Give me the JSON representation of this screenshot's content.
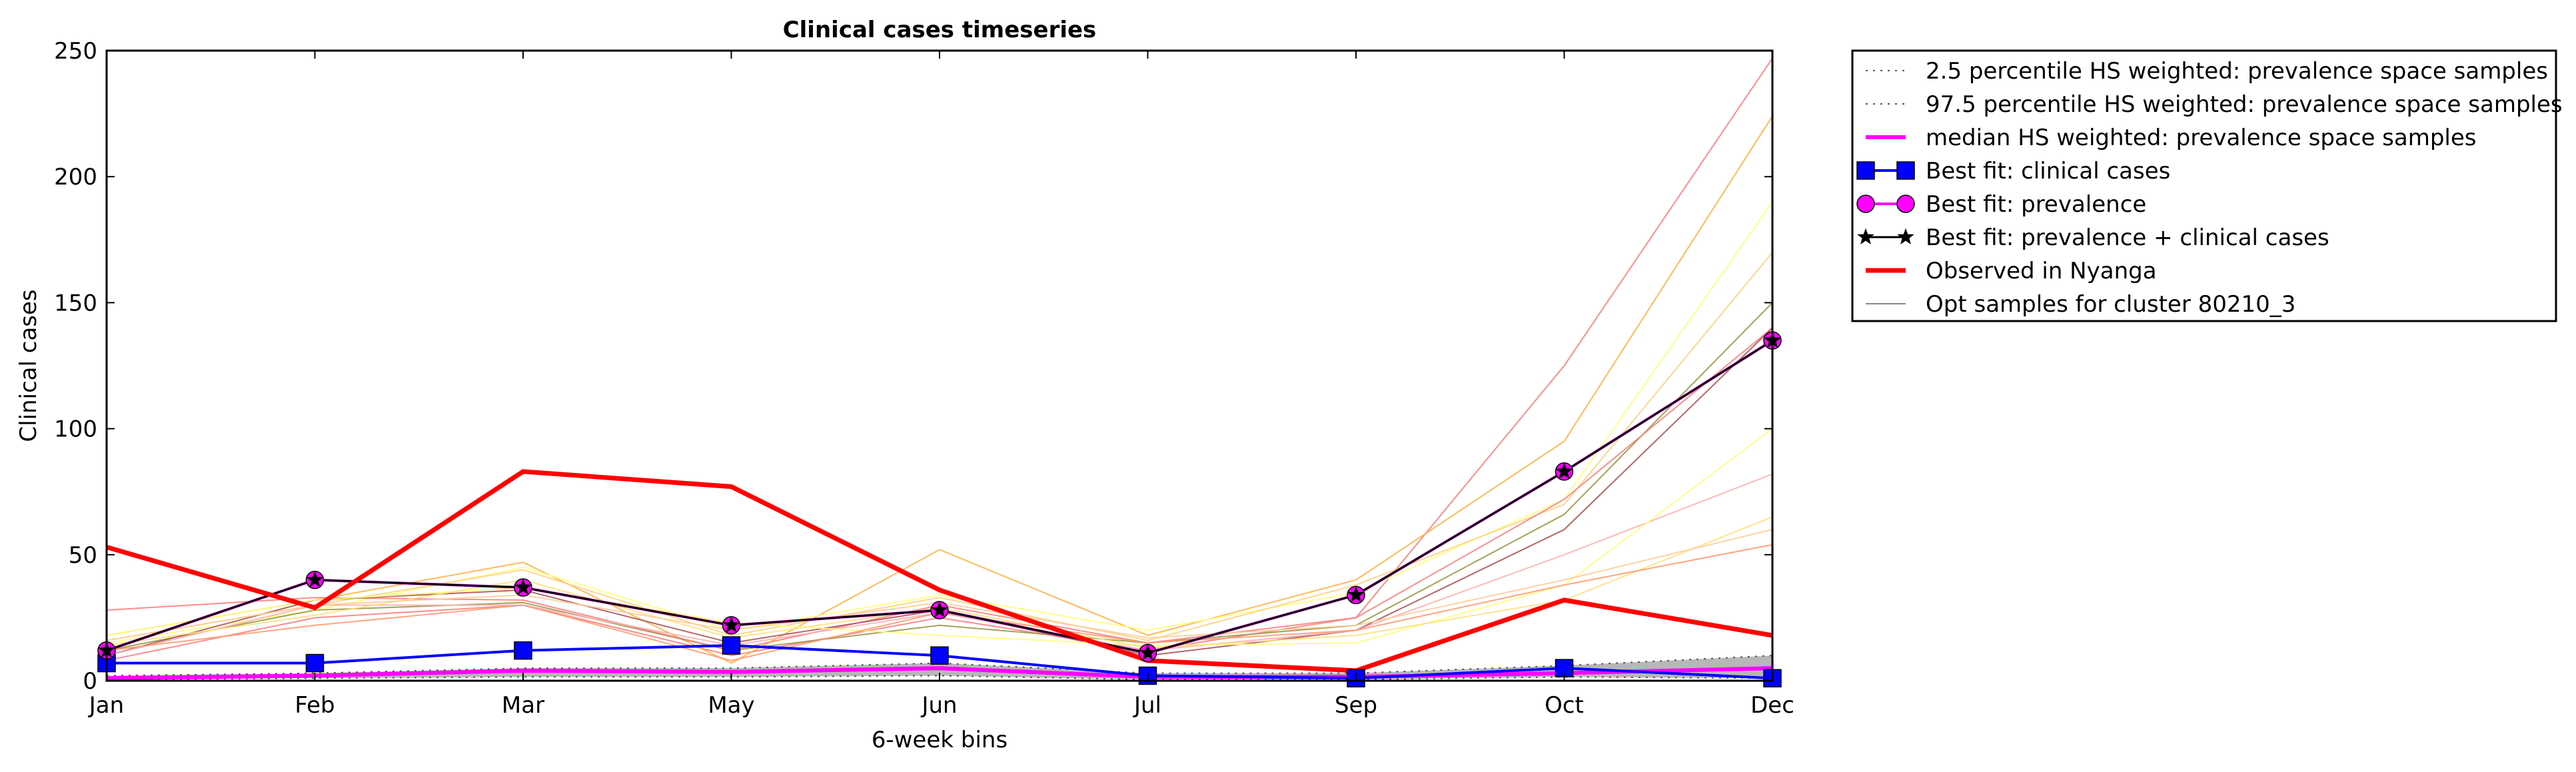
{
  "chart_data": {
    "type": "line",
    "title": "Clinical cases timeseries",
    "xlabel": "6-week bins",
    "ylabel": "Clinical cases",
    "categories": [
      "Jan",
      "Feb",
      "Mar",
      "May",
      "Jun",
      "Jul",
      "Sep",
      "Oct",
      "Dec"
    ],
    "ylim": [
      0,
      250
    ],
    "yticks": [
      "0",
      "50",
      "100",
      "150",
      "200",
      "250"
    ],
    "grid": false,
    "legend_position": "outside-right-top",
    "series": [
      {
        "name": "2.5 percentile HS weighted: prevalence space samples",
        "style": "dotted",
        "color": "#555555",
        "values": [
          0.5,
          1,
          1.5,
          1.5,
          2,
          0.5,
          0.5,
          1.5,
          1
        ]
      },
      {
        "name": "97.5 percentile HS weighted: prevalence space samples",
        "style": "dotted",
        "color": "#555555",
        "values": [
          2,
          3,
          5,
          5,
          7,
          3,
          3,
          6,
          10
        ]
      },
      {
        "name": "median HS weighted: prevalence space samples",
        "style": "solid",
        "color": "#ff00ff",
        "values": [
          1,
          2,
          4,
          3.5,
          5,
          1.5,
          1.5,
          3,
          5
        ]
      },
      {
        "name": "Best fit: clinical cases",
        "style": "solid",
        "marker": "square",
        "color": "#0000ff",
        "values": [
          7,
          7,
          12,
          14,
          10,
          2,
          1,
          5,
          1
        ]
      },
      {
        "name": "Best fit: prevalence",
        "style": "solid",
        "marker": "circle",
        "color": "#ff00ff",
        "values": [
          12,
          40,
          37,
          22,
          28,
          11,
          34,
          83,
          135
        ]
      },
      {
        "name": "Best fit: prevalence + clinical cases",
        "style": "solid",
        "marker": "star",
        "color": "#000000",
        "values": [
          12,
          40,
          37,
          22,
          28,
          11,
          34,
          83,
          135
        ]
      },
      {
        "name": "Observed in Nyanga",
        "style": "solid",
        "color": "#ff0000",
        "values": [
          53,
          29,
          83,
          77,
          36,
          8,
          4,
          32,
          18
        ]
      },
      {
        "name": "Opt samples for cluster 80210_3",
        "style": "thin",
        "color": "#888888",
        "values": [
          15,
          35,
          52,
          30,
          44,
          12,
          20,
          62,
          85
        ]
      }
    ],
    "sample_lines": [
      {
        "color": "#ff8080",
        "values": [
          8,
          25,
          30,
          10,
          25,
          12,
          25,
          125,
          247
        ]
      },
      {
        "color": "#ffb347",
        "values": [
          18,
          32,
          47,
          7,
          52,
          18,
          40,
          95,
          224
        ]
      },
      {
        "color": "#ffff80",
        "values": [
          15,
          28,
          45,
          20,
          34,
          20,
          35,
          72,
          190
        ]
      },
      {
        "color": "#ffd27f",
        "values": [
          16,
          30,
          44,
          18,
          33,
          16,
          38,
          70,
          170
        ]
      },
      {
        "color": "#999944",
        "values": [
          12,
          28,
          31,
          12,
          22,
          15,
          22,
          66,
          150
        ]
      },
      {
        "color": "#ff8080",
        "values": [
          28,
          33,
          32,
          12,
          30,
          15,
          25,
          72,
          140
        ]
      },
      {
        "color": "#aa5555",
        "values": [
          10,
          32,
          36,
          15,
          28,
          10,
          20,
          60,
          140
        ]
      },
      {
        "color": "#ffb0b0",
        "values": [
          10,
          30,
          30,
          14,
          27,
          12,
          20,
          50,
          82
        ]
      },
      {
        "color": "#ffff80",
        "values": [
          18,
          32,
          37,
          23,
          18,
          14,
          15,
          38,
          100
        ]
      },
      {
        "color": "#ffe080",
        "values": [
          14,
          26,
          40,
          17,
          29,
          13,
          18,
          32,
          65
        ]
      },
      {
        "color": "#ff9a70",
        "values": [
          12,
          22,
          30,
          8,
          27,
          15,
          20,
          38,
          54
        ]
      },
      {
        "color": "#ffcc99",
        "values": [
          16,
          30,
          34,
          20,
          31,
          17,
          22,
          40,
          60
        ]
      }
    ]
  }
}
